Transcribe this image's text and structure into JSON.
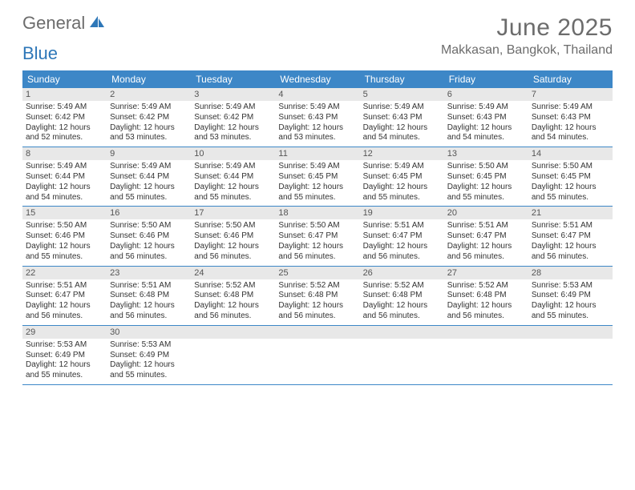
{
  "branding": {
    "logo_part1": "General",
    "logo_part2": "Blue"
  },
  "header": {
    "month_title": "June 2025",
    "location": "Makkasan, Bangkok, Thailand"
  },
  "styling": {
    "page_bg": "#ffffff",
    "header_text_color": "#6c6c6c",
    "dow_bg": "#3d87c7",
    "dow_text": "#ffffff",
    "daynum_bg": "#e8e8e8",
    "daynum_text": "#555555",
    "body_text": "#333333",
    "week_border": "#3d87c7",
    "month_title_fontsize": 30,
    "location_fontsize": 16,
    "dow_fontsize": 12,
    "daynum_fontsize": 11,
    "info_fontsize": 10,
    "columns": 7
  },
  "days_of_week": [
    "Sunday",
    "Monday",
    "Tuesday",
    "Wednesday",
    "Thursday",
    "Friday",
    "Saturday"
  ],
  "weeks": [
    [
      {
        "n": "1",
        "sunrise": "5:49 AM",
        "sunset": "6:42 PM",
        "dl_h": "12",
        "dl_m": "52"
      },
      {
        "n": "2",
        "sunrise": "5:49 AM",
        "sunset": "6:42 PM",
        "dl_h": "12",
        "dl_m": "53"
      },
      {
        "n": "3",
        "sunrise": "5:49 AM",
        "sunset": "6:42 PM",
        "dl_h": "12",
        "dl_m": "53"
      },
      {
        "n": "4",
        "sunrise": "5:49 AM",
        "sunset": "6:43 PM",
        "dl_h": "12",
        "dl_m": "53"
      },
      {
        "n": "5",
        "sunrise": "5:49 AM",
        "sunset": "6:43 PM",
        "dl_h": "12",
        "dl_m": "54"
      },
      {
        "n": "6",
        "sunrise": "5:49 AM",
        "sunset": "6:43 PM",
        "dl_h": "12",
        "dl_m": "54"
      },
      {
        "n": "7",
        "sunrise": "5:49 AM",
        "sunset": "6:43 PM",
        "dl_h": "12",
        "dl_m": "54"
      }
    ],
    [
      {
        "n": "8",
        "sunrise": "5:49 AM",
        "sunset": "6:44 PM",
        "dl_h": "12",
        "dl_m": "54"
      },
      {
        "n": "9",
        "sunrise": "5:49 AM",
        "sunset": "6:44 PM",
        "dl_h": "12",
        "dl_m": "55"
      },
      {
        "n": "10",
        "sunrise": "5:49 AM",
        "sunset": "6:44 PM",
        "dl_h": "12",
        "dl_m": "55"
      },
      {
        "n": "11",
        "sunrise": "5:49 AM",
        "sunset": "6:45 PM",
        "dl_h": "12",
        "dl_m": "55"
      },
      {
        "n": "12",
        "sunrise": "5:49 AM",
        "sunset": "6:45 PM",
        "dl_h": "12",
        "dl_m": "55"
      },
      {
        "n": "13",
        "sunrise": "5:50 AM",
        "sunset": "6:45 PM",
        "dl_h": "12",
        "dl_m": "55"
      },
      {
        "n": "14",
        "sunrise": "5:50 AM",
        "sunset": "6:45 PM",
        "dl_h": "12",
        "dl_m": "55"
      }
    ],
    [
      {
        "n": "15",
        "sunrise": "5:50 AM",
        "sunset": "6:46 PM",
        "dl_h": "12",
        "dl_m": "55"
      },
      {
        "n": "16",
        "sunrise": "5:50 AM",
        "sunset": "6:46 PM",
        "dl_h": "12",
        "dl_m": "56"
      },
      {
        "n": "17",
        "sunrise": "5:50 AM",
        "sunset": "6:46 PM",
        "dl_h": "12",
        "dl_m": "56"
      },
      {
        "n": "18",
        "sunrise": "5:50 AM",
        "sunset": "6:47 PM",
        "dl_h": "12",
        "dl_m": "56"
      },
      {
        "n": "19",
        "sunrise": "5:51 AM",
        "sunset": "6:47 PM",
        "dl_h": "12",
        "dl_m": "56"
      },
      {
        "n": "20",
        "sunrise": "5:51 AM",
        "sunset": "6:47 PM",
        "dl_h": "12",
        "dl_m": "56"
      },
      {
        "n": "21",
        "sunrise": "5:51 AM",
        "sunset": "6:47 PM",
        "dl_h": "12",
        "dl_m": "56"
      }
    ],
    [
      {
        "n": "22",
        "sunrise": "5:51 AM",
        "sunset": "6:47 PM",
        "dl_h": "12",
        "dl_m": "56"
      },
      {
        "n": "23",
        "sunrise": "5:51 AM",
        "sunset": "6:48 PM",
        "dl_h": "12",
        "dl_m": "56"
      },
      {
        "n": "24",
        "sunrise": "5:52 AM",
        "sunset": "6:48 PM",
        "dl_h": "12",
        "dl_m": "56"
      },
      {
        "n": "25",
        "sunrise": "5:52 AM",
        "sunset": "6:48 PM",
        "dl_h": "12",
        "dl_m": "56"
      },
      {
        "n": "26",
        "sunrise": "5:52 AM",
        "sunset": "6:48 PM",
        "dl_h": "12",
        "dl_m": "56"
      },
      {
        "n": "27",
        "sunrise": "5:52 AM",
        "sunset": "6:48 PM",
        "dl_h": "12",
        "dl_m": "56"
      },
      {
        "n": "28",
        "sunrise": "5:53 AM",
        "sunset": "6:49 PM",
        "dl_h": "12",
        "dl_m": "55"
      }
    ],
    [
      {
        "n": "29",
        "sunrise": "5:53 AM",
        "sunset": "6:49 PM",
        "dl_h": "12",
        "dl_m": "55"
      },
      {
        "n": "30",
        "sunrise": "5:53 AM",
        "sunset": "6:49 PM",
        "dl_h": "12",
        "dl_m": "55"
      },
      null,
      null,
      null,
      null,
      null
    ]
  ],
  "labels": {
    "sunrise": "Sunrise:",
    "sunset": "Sunset:",
    "daylight": "Daylight:",
    "hours": "hours",
    "and": "and",
    "minutes": "minutes."
  }
}
